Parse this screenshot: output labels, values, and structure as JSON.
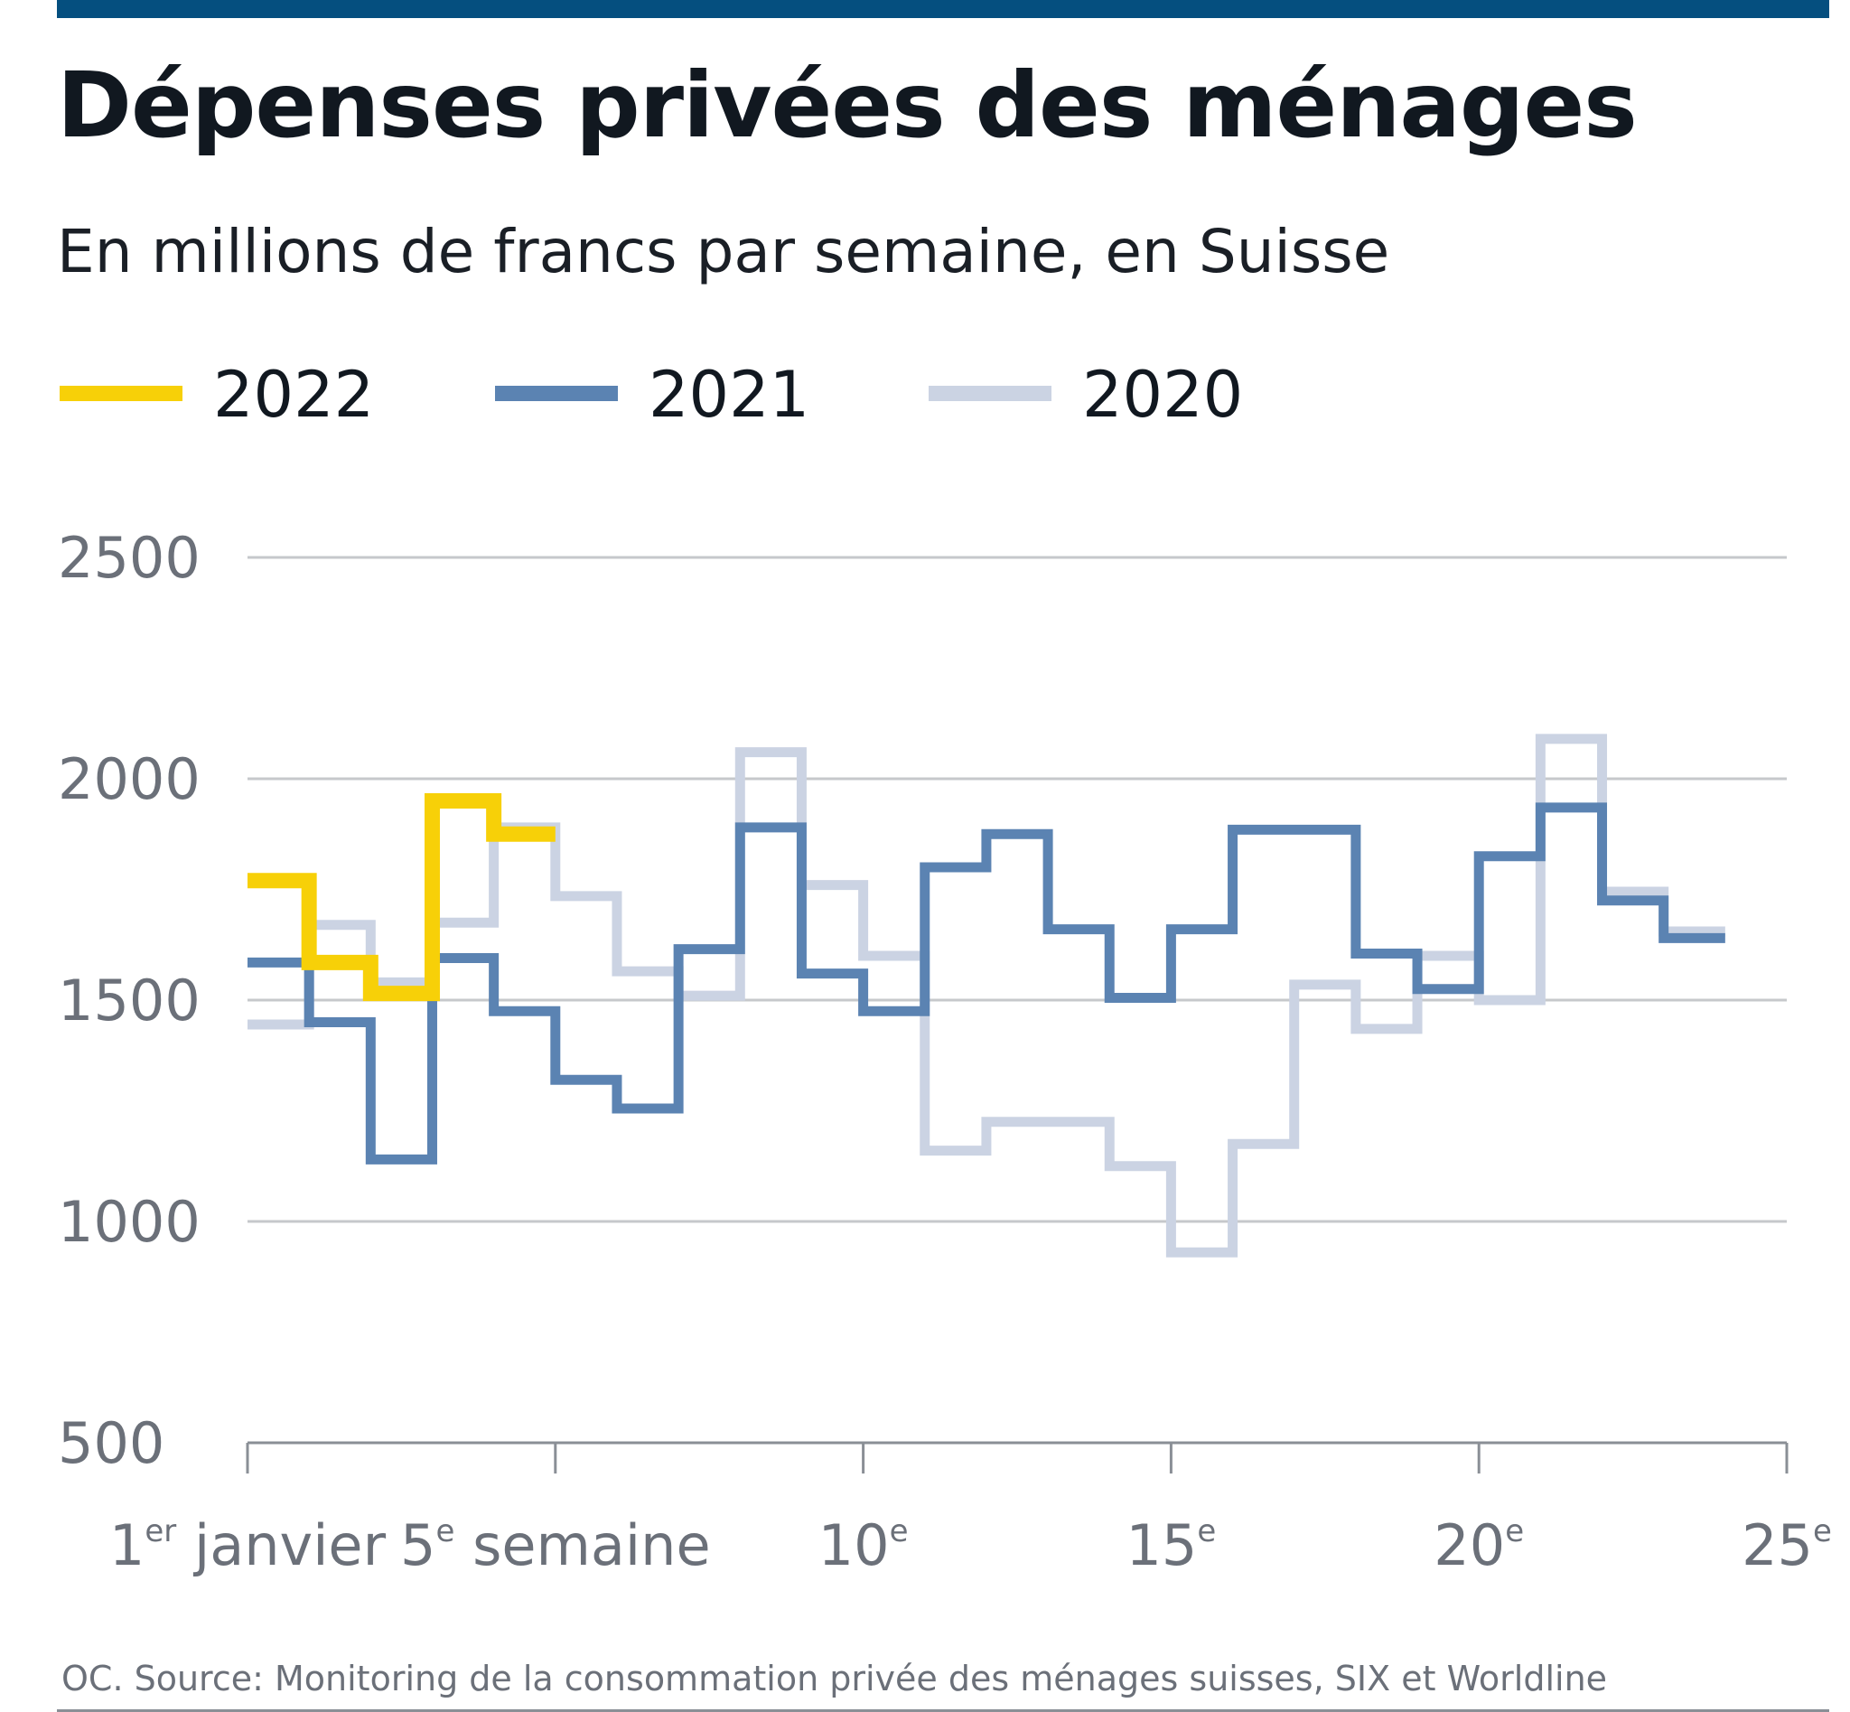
{
  "title": "Dépenses privées des ménages",
  "subtitle": "En millions de francs par semaine, en Suisse",
  "source": "OC. Source: Monitoring de la consommation privée des ménages suisses, SIX et Worldline",
  "colors": {
    "top_bar": "#054f7f",
    "series_2022": "#f7d008",
    "series_2021": "#5b83b2",
    "series_2020": "#cbd3e3",
    "grid": "#c6c8cb",
    "axis_text": "#6b7079"
  },
  "legend": [
    {
      "label": "2022",
      "color": "#f7d008"
    },
    {
      "label": "2021",
      "color": "#5b83b2"
    },
    {
      "label": "2020",
      "color": "#cbd3e3"
    }
  ],
  "chart_data": {
    "type": "line",
    "step": true,
    "title": "Dépenses privées des ménages",
    "ylabel": "En millions de francs par semaine, en Suisse",
    "xlabel": "",
    "ylim": [
      500,
      2500
    ],
    "xlim": [
      1,
      25
    ],
    "yticks": [
      500,
      1000,
      1500,
      2000,
      2500
    ],
    "xticks": [
      {
        "value": 1,
        "main": "1",
        "sup": "er",
        "rest": " janvier"
      },
      {
        "value": 6,
        "main": "5",
        "sup": "e",
        "rest": " semaine"
      },
      {
        "value": 11,
        "main": "10",
        "sup": "e",
        "rest": ""
      },
      {
        "value": 16,
        "main": "15",
        "sup": "e",
        "rest": ""
      },
      {
        "value": 21,
        "main": "20",
        "sup": "e",
        "rest": ""
      },
      {
        "value": 26,
        "main": "25",
        "sup": "e",
        "rest": ""
      }
    ],
    "grid": true,
    "series": [
      {
        "name": "2020",
        "values": [
          1445,
          1670,
          1540,
          1675,
          1890,
          1735,
          1565,
          1510,
          2060,
          1760,
          1600,
          1160,
          1225,
          1225,
          1125,
          930,
          1175,
          1535,
          1435,
          1600,
          1500,
          2090,
          1745,
          1655
        ]
      },
      {
        "name": "2021",
        "values": [
          1585,
          1450,
          1140,
          1595,
          1475,
          1320,
          1255,
          1615,
          1890,
          1560,
          1475,
          1800,
          1875,
          1660,
          1505,
          1660,
          1885,
          1885,
          1605,
          1525,
          1825,
          1935,
          1725,
          1640
        ]
      },
      {
        "name": "2022",
        "values": [
          1770,
          1585,
          1515,
          1950,
          1875
        ]
      }
    ]
  }
}
